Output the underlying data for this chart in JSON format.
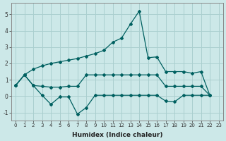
{
  "xlabel": "Humidex (Indice chaleur)",
  "bg_color": "#cce8e8",
  "line_color": "#006060",
  "grid_color": "#aacfcf",
  "yticks": [
    -1,
    0,
    1,
    2,
    3,
    4,
    5
  ],
  "xticks": [
    0,
    1,
    2,
    3,
    4,
    5,
    6,
    7,
    8,
    9,
    10,
    11,
    12,
    13,
    14,
    15,
    16,
    17,
    18,
    19,
    20,
    21,
    22,
    23
  ],
  "ylim": [
    -1.5,
    5.7
  ],
  "xlim": [
    -0.5,
    23.5
  ],
  "line1_x": [
    0,
    1,
    2,
    3,
    4,
    5,
    6,
    7,
    8,
    9,
    10,
    11,
    12,
    13,
    14,
    15,
    16,
    17,
    18,
    19,
    20,
    21,
    22
  ],
  "line1_y": [
    0.65,
    1.3,
    1.65,
    1.85,
    2.0,
    2.1,
    2.2,
    2.3,
    2.45,
    2.6,
    2.8,
    3.3,
    3.55,
    4.4,
    5.2,
    2.35,
    2.4,
    1.5,
    1.5,
    1.5,
    1.4,
    1.5,
    0.05
  ],
  "line2_x": [
    0,
    1,
    2,
    3,
    4,
    5,
    6,
    7,
    8,
    9,
    10,
    11,
    12,
    13,
    14,
    15,
    16,
    17,
    18,
    19,
    20,
    21,
    22
  ],
  "line2_y": [
    0.65,
    1.3,
    0.65,
    0.6,
    0.55,
    0.55,
    0.6,
    0.6,
    1.3,
    1.3,
    1.3,
    1.3,
    1.3,
    1.3,
    1.3,
    1.3,
    1.3,
    0.6,
    0.6,
    0.6,
    0.6,
    0.6,
    0.05
  ],
  "line3_x": [
    0,
    1,
    2,
    3,
    4,
    5,
    6,
    7,
    8,
    9,
    10,
    11,
    12,
    13,
    14,
    15,
    16,
    17,
    18,
    19,
    20,
    21,
    22
  ],
  "line3_y": [
    0.65,
    1.3,
    0.65,
    0.05,
    -0.5,
    -0.05,
    -0.05,
    -1.1,
    -0.7,
    0.05,
    0.05,
    0.05,
    0.05,
    0.05,
    0.05,
    0.05,
    0.05,
    -0.3,
    -0.35,
    0.05,
    0.05,
    0.05,
    0.05
  ],
  "marker": "D",
  "markersize": 2.0,
  "linewidth": 0.9
}
